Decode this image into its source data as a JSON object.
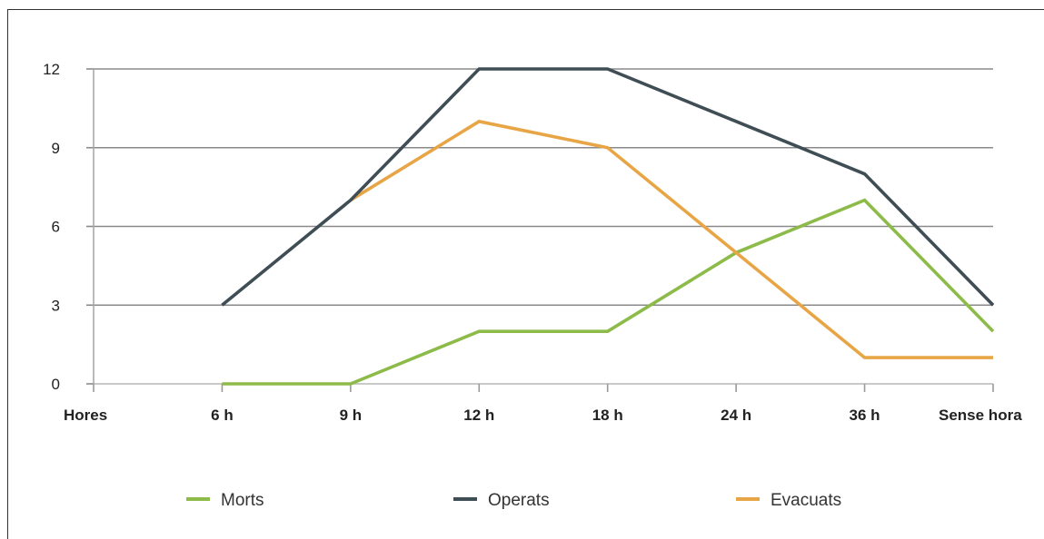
{
  "chart_data": {
    "type": "line",
    "categories": [
      "Hores",
      "6 h",
      "9 h",
      "12 h",
      "18 h",
      "24 h",
      "36 h",
      "Sense hora"
    ],
    "ylim": [
      0,
      12
    ],
    "yticks": [
      "0",
      "3",
      "6",
      "9",
      "12"
    ],
    "grid": true,
    "legend_position": "bottom",
    "series": [
      {
        "name": "Morts",
        "color": "#8dbb4a",
        "values": [
          null,
          0,
          0,
          2,
          2,
          5,
          7,
          2
        ]
      },
      {
        "name": "Operats",
        "color": "#3f4d55",
        "values": [
          null,
          3,
          7,
          12,
          12,
          10,
          8,
          3
        ]
      },
      {
        "name": "Evacuats",
        "color": "#e8a546",
        "values": [
          null,
          null,
          7,
          10,
          9,
          5,
          1,
          1
        ]
      }
    ]
  }
}
